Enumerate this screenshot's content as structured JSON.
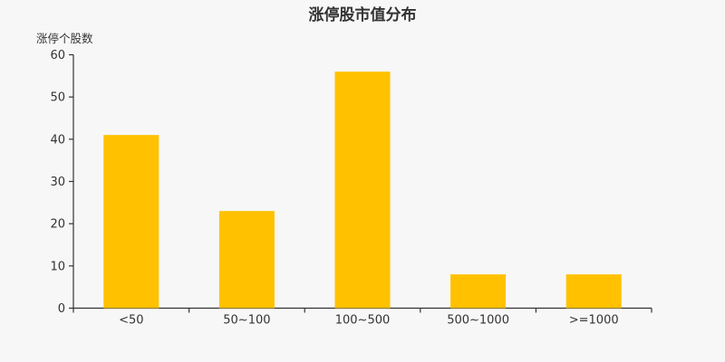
{
  "colors": {
    "background": "#f7f7f7",
    "bar": "#ffc100",
    "text": "#333333",
    "axis": "#333333"
  },
  "chart_data": {
    "type": "bar",
    "title": "涨停股市值分布",
    "ylabel": "涨停个股数",
    "xlabel": "",
    "categories": [
      "<50",
      "50~100",
      "100~500",
      "500~1000",
      ">=1000"
    ],
    "values": [
      41,
      23,
      56,
      8,
      8
    ],
    "ylim": [
      0,
      60
    ],
    "yticks": [
      0,
      10,
      20,
      30,
      40,
      50,
      60
    ],
    "grid": false,
    "legend": "none"
  }
}
